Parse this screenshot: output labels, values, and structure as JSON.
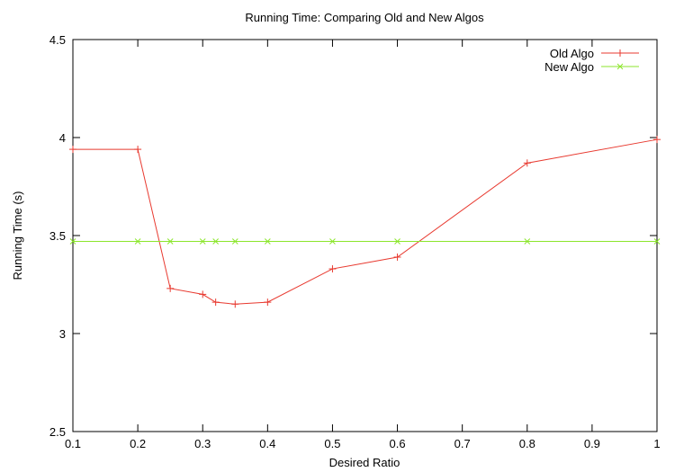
{
  "chart_data": {
    "type": "line",
    "title": "Running Time: Comparing Old and New Algos",
    "xlabel": "Desired Ratio",
    "ylabel": "Running Time (s)",
    "xlim": [
      0.1,
      1
    ],
    "ylim": [
      2.5,
      4.5
    ],
    "xticks": [
      "0.1",
      "0.2",
      "0.3",
      "0.4",
      "0.5",
      "0.6",
      "0.7",
      "0.8",
      "0.9",
      "1"
    ],
    "yticks": [
      "2.5",
      "3",
      "3.5",
      "4",
      "4.5"
    ],
    "grid": false,
    "legend_position": "top-right",
    "series": [
      {
        "name": "Old Algo",
        "color": "#e8392f",
        "marker": "plus",
        "points": [
          [
            0.1,
            3.94
          ],
          [
            0.2,
            3.94
          ],
          [
            0.25,
            3.23
          ],
          [
            0.3,
            3.2
          ],
          [
            0.32,
            3.16
          ],
          [
            0.35,
            3.15
          ],
          [
            0.4,
            3.16
          ],
          [
            0.5,
            3.33
          ],
          [
            0.6,
            3.39
          ],
          [
            0.8,
            3.87
          ],
          [
            1.0,
            3.99
          ]
        ]
      },
      {
        "name": "New Algo",
        "color": "#8ce62c",
        "marker": "cross",
        "points": [
          [
            0.1,
            3.47
          ],
          [
            0.2,
            3.47
          ],
          [
            0.25,
            3.47
          ],
          [
            0.3,
            3.47
          ],
          [
            0.32,
            3.47
          ],
          [
            0.35,
            3.47
          ],
          [
            0.4,
            3.47
          ],
          [
            0.5,
            3.47
          ],
          [
            0.6,
            3.47
          ],
          [
            0.8,
            3.47
          ],
          [
            1.0,
            3.47
          ]
        ]
      }
    ]
  }
}
